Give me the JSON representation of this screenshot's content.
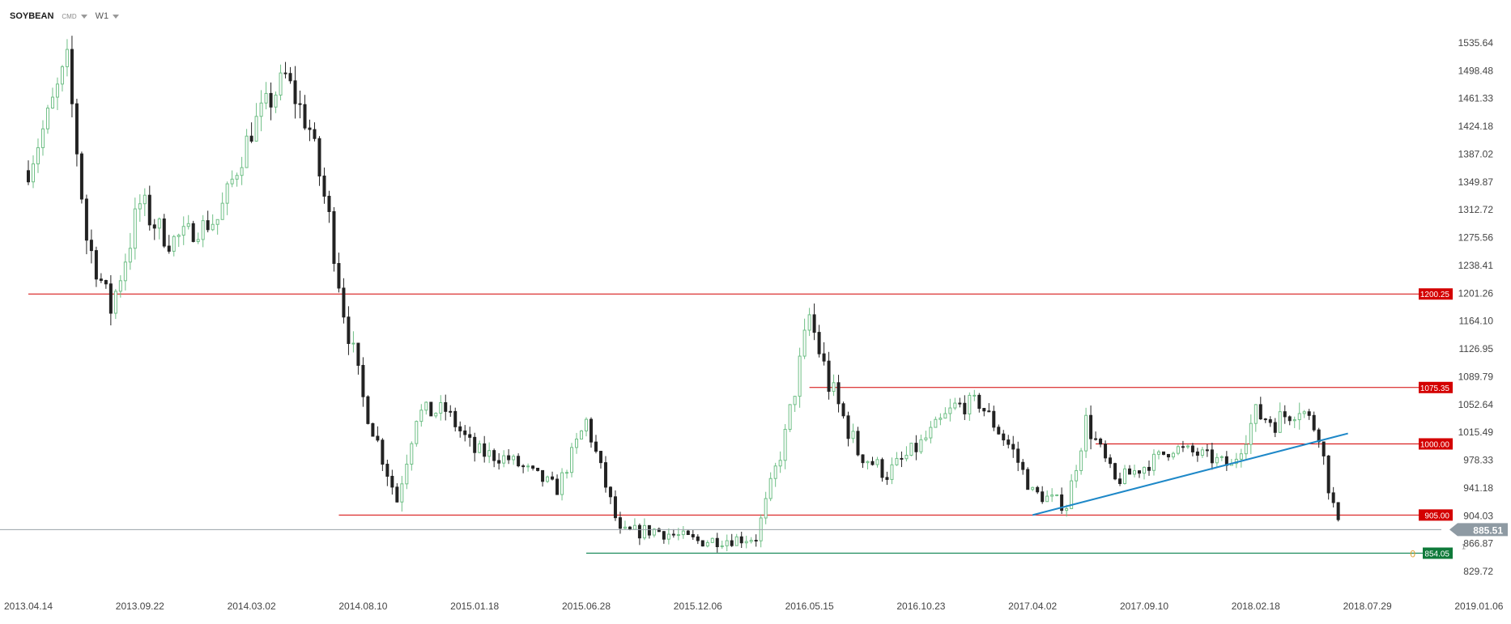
{
  "header": {
    "symbol": "SOYBEAN",
    "exchange": "CMD",
    "timeframe": "W1"
  },
  "colors": {
    "bull": "#6fbf86",
    "bear": "#222222",
    "resistance": "#d40000",
    "trendline": "#1e88c8",
    "support_low": "#1a8a5a",
    "last_price_bg": "#8e9aa3",
    "low_label_bg": "#0f7a3a",
    "axis_text": "#444444"
  },
  "chart_data": {
    "type": "candlestick",
    "y_ticks": [
      "1535.64",
      "1498.48",
      "1461.33",
      "1424.18",
      "1387.02",
      "1349.87",
      "1312.72",
      "1275.56",
      "1238.41",
      "1201.26",
      "1164.10",
      "1126.95",
      "1089.79",
      "1052.64",
      "1015.49",
      "978.33",
      "941.18",
      "904.03",
      "866.87",
      "829.72"
    ],
    "ylim": [
      829.72,
      1535.64
    ],
    "x_ticks": [
      "2013.04.14",
      "2013.09.22",
      "2014.03.02",
      "2014.08.10",
      "2015.01.18",
      "2015.06.28",
      "2015.12.06",
      "2016.05.15",
      "2016.10.23",
      "2017.04.02",
      "2017.09.10",
      "2018.02.18",
      "2018.07.29",
      "2019.01.06"
    ],
    "last_price": "885.51",
    "last_price_value": 885.51,
    "last_price_row": "1",
    "levels": [
      {
        "label": "1200.25",
        "value": 1200.25,
        "start": "2013.04.14"
      },
      {
        "label": "1075.35",
        "value": 1075.35,
        "start": "2016.05.15"
      },
      {
        "label": "1000.00",
        "value": 1000.0,
        "start": "2017.07.02"
      },
      {
        "label": "905.00",
        "value": 905.0,
        "start": "2014.07.06"
      }
    ],
    "low_level": {
      "label": "854.05",
      "value": 854.05,
      "start": "2015.06.28",
      "tag": "0"
    },
    "trendline": [
      {
        "date": "2017.04.02",
        "value": 905.0
      },
      {
        "date": "2018.07.01",
        "value": 1014.0
      }
    ],
    "anchors": [
      {
        "date": "2013.04.14",
        "price": 1365,
        "range": 30
      },
      {
        "date": "2013.06.09",
        "price": 1510,
        "range": 40
      },
      {
        "date": "2013.07.07",
        "price": 1275,
        "range": 40
      },
      {
        "date": "2013.08.11",
        "price": 1180,
        "range": 35
      },
      {
        "date": "2013.09.22",
        "price": 1320,
        "range": 50
      },
      {
        "date": "2013.11.03",
        "price": 1270,
        "range": 30
      },
      {
        "date": "2014.01.12",
        "price": 1300,
        "range": 30
      },
      {
        "date": "2014.03.02",
        "price": 1420,
        "range": 40
      },
      {
        "date": "2014.04.20",
        "price": 1490,
        "range": 40
      },
      {
        "date": "2014.05.25",
        "price": 1420,
        "range": 40
      },
      {
        "date": "2014.06.22",
        "price": 1300,
        "range": 40
      },
      {
        "date": "2014.07.13",
        "price": 1180,
        "range": 40
      },
      {
        "date": "2014.08.10",
        "price": 1060,
        "range": 30
      },
      {
        "date": "2014.09.28",
        "price": 925,
        "range": 25
      },
      {
        "date": "2014.10.26",
        "price": 1040,
        "range": 30
      },
      {
        "date": "2014.12.07",
        "price": 1045,
        "range": 25
      },
      {
        "date": "2015.01.18",
        "price": 990,
        "range": 25
      },
      {
        "date": "2015.03.08",
        "price": 980,
        "range": 20
      },
      {
        "date": "2015.05.17",
        "price": 940,
        "range": 20
      },
      {
        "date": "2015.06.28",
        "price": 1030,
        "range": 25
      },
      {
        "date": "2015.08.16",
        "price": 880,
        "range": 20
      },
      {
        "date": "2015.10.04",
        "price": 885,
        "range": 20
      },
      {
        "date": "2015.12.06",
        "price": 870,
        "range": 18
      },
      {
        "date": "2016.02.28",
        "price": 875,
        "range": 18
      },
      {
        "date": "2016.04.10",
        "price": 1010,
        "range": 30
      },
      {
        "date": "2016.05.15",
        "price": 1170,
        "range": 40
      },
      {
        "date": "2016.06.12",
        "price": 1080,
        "range": 40
      },
      {
        "date": "2016.07.24",
        "price": 990,
        "range": 30
      },
      {
        "date": "2016.09.04",
        "price": 960,
        "range": 25
      },
      {
        "date": "2016.10.23",
        "price": 1000,
        "range": 25
      },
      {
        "date": "2016.12.11",
        "price": 1050,
        "range": 25
      },
      {
        "date": "2017.01.15",
        "price": 1055,
        "range": 25
      },
      {
        "date": "2017.03.05",
        "price": 990,
        "range": 25
      },
      {
        "date": "2017.04.02",
        "price": 935,
        "range": 20
      },
      {
        "date": "2017.05.21",
        "price": 918,
        "range": 20
      },
      {
        "date": "2017.06.18",
        "price": 1030,
        "range": 30
      },
      {
        "date": "2017.07.30",
        "price": 950,
        "range": 20
      },
      {
        "date": "2017.09.10",
        "price": 970,
        "range": 20
      },
      {
        "date": "2017.10.22",
        "price": 995,
        "range": 20
      },
      {
        "date": "2017.12.03",
        "price": 985,
        "range": 20
      },
      {
        "date": "2018.01.14",
        "price": 970,
        "range": 20
      },
      {
        "date": "2018.02.18",
        "price": 1040,
        "range": 30
      },
      {
        "date": "2018.03.18",
        "price": 1030,
        "range": 30
      },
      {
        "date": "2018.04.22",
        "price": 1050,
        "range": 30
      },
      {
        "date": "2018.05.20",
        "price": 1015,
        "range": 25
      },
      {
        "date": "2018.06.03",
        "price": 945,
        "range": 25
      },
      {
        "date": "2018.06.17",
        "price": 890,
        "range": 20
      }
    ],
    "grid": false
  }
}
